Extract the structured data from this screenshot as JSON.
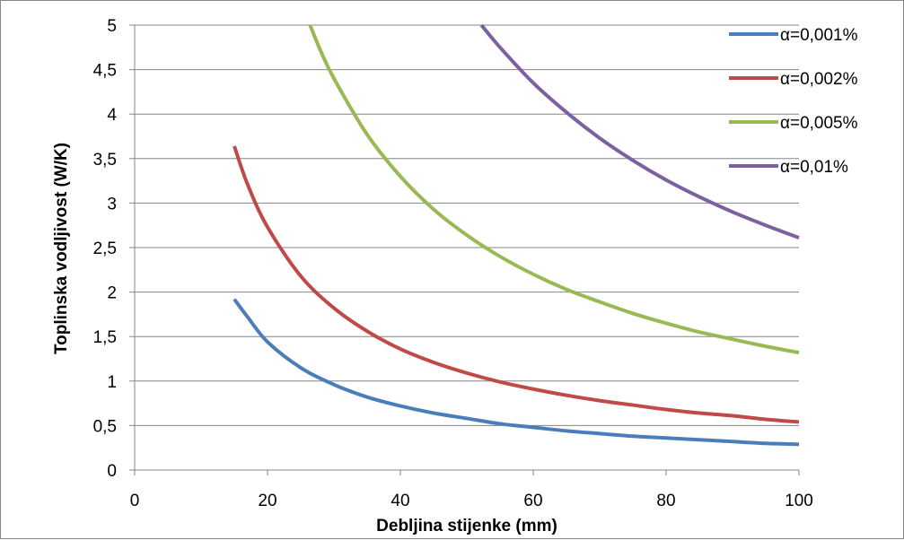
{
  "chart_data": {
    "type": "line",
    "title": "",
    "xlabel": "Debljina stijenke (mm)",
    "ylabel": "Toplinska vodljivost (W/K)",
    "xlim": [
      0,
      100
    ],
    "ylim": [
      0,
      5
    ],
    "x_ticks": [
      0,
      20,
      40,
      60,
      80,
      100
    ],
    "x_tick_labels": [
      "0",
      "20",
      "40",
      "60",
      "80",
      "100"
    ],
    "y_ticks": [
      0,
      0.5,
      1,
      1.5,
      2,
      2.5,
      3,
      3.5,
      4,
      4.5,
      5
    ],
    "y_tick_labels": [
      "0",
      "0,5",
      "1",
      "1,5",
      "2",
      "2,5",
      "3",
      "3,5",
      "4",
      "4,5",
      "5"
    ],
    "grid": "horizontal",
    "legend_position": "right",
    "series": [
      {
        "name": "α=0,001%",
        "color": "#4a7ebb",
        "x": [
          15,
          17,
          20,
          25,
          30,
          35,
          40,
          45,
          50,
          55,
          60,
          65,
          70,
          75,
          80,
          85,
          90,
          95,
          100
        ],
        "y": [
          1.92,
          1.72,
          1.44,
          1.15,
          0.96,
          0.82,
          0.72,
          0.64,
          0.58,
          0.52,
          0.48,
          0.44,
          0.41,
          0.38,
          0.36,
          0.34,
          0.32,
          0.3,
          0.29
        ]
      },
      {
        "name": "α=0,002%",
        "color": "#be4b48",
        "x": [
          15,
          17,
          20,
          25,
          30,
          35,
          40,
          45,
          50,
          55,
          60,
          65,
          70,
          75,
          80,
          85,
          90,
          95,
          100
        ],
        "y": [
          3.64,
          3.21,
          2.73,
          2.18,
          1.82,
          1.56,
          1.36,
          1.21,
          1.09,
          0.99,
          0.91,
          0.84,
          0.78,
          0.73,
          0.68,
          0.64,
          0.61,
          0.57,
          0.54
        ]
      },
      {
        "name": "α=0,005%",
        "color": "#98b954",
        "x": [
          26.4,
          28,
          30,
          35,
          40,
          45,
          50,
          55,
          60,
          65,
          70,
          75,
          80,
          85,
          90,
          95,
          100
        ],
        "y": [
          5.0,
          4.71,
          4.4,
          3.77,
          3.3,
          2.93,
          2.64,
          2.4,
          2.2,
          2.03,
          1.89,
          1.76,
          1.65,
          1.55,
          1.47,
          1.39,
          1.32
        ]
      },
      {
        "name": "α=0,01%",
        "color": "#7d60a0",
        "x": [
          52.2,
          55,
          60,
          65,
          70,
          75,
          80,
          85,
          90,
          95,
          100
        ],
        "y": [
          5.0,
          4.75,
          4.35,
          4.02,
          3.73,
          3.48,
          3.26,
          3.07,
          2.9,
          2.75,
          2.61
        ]
      }
    ]
  }
}
